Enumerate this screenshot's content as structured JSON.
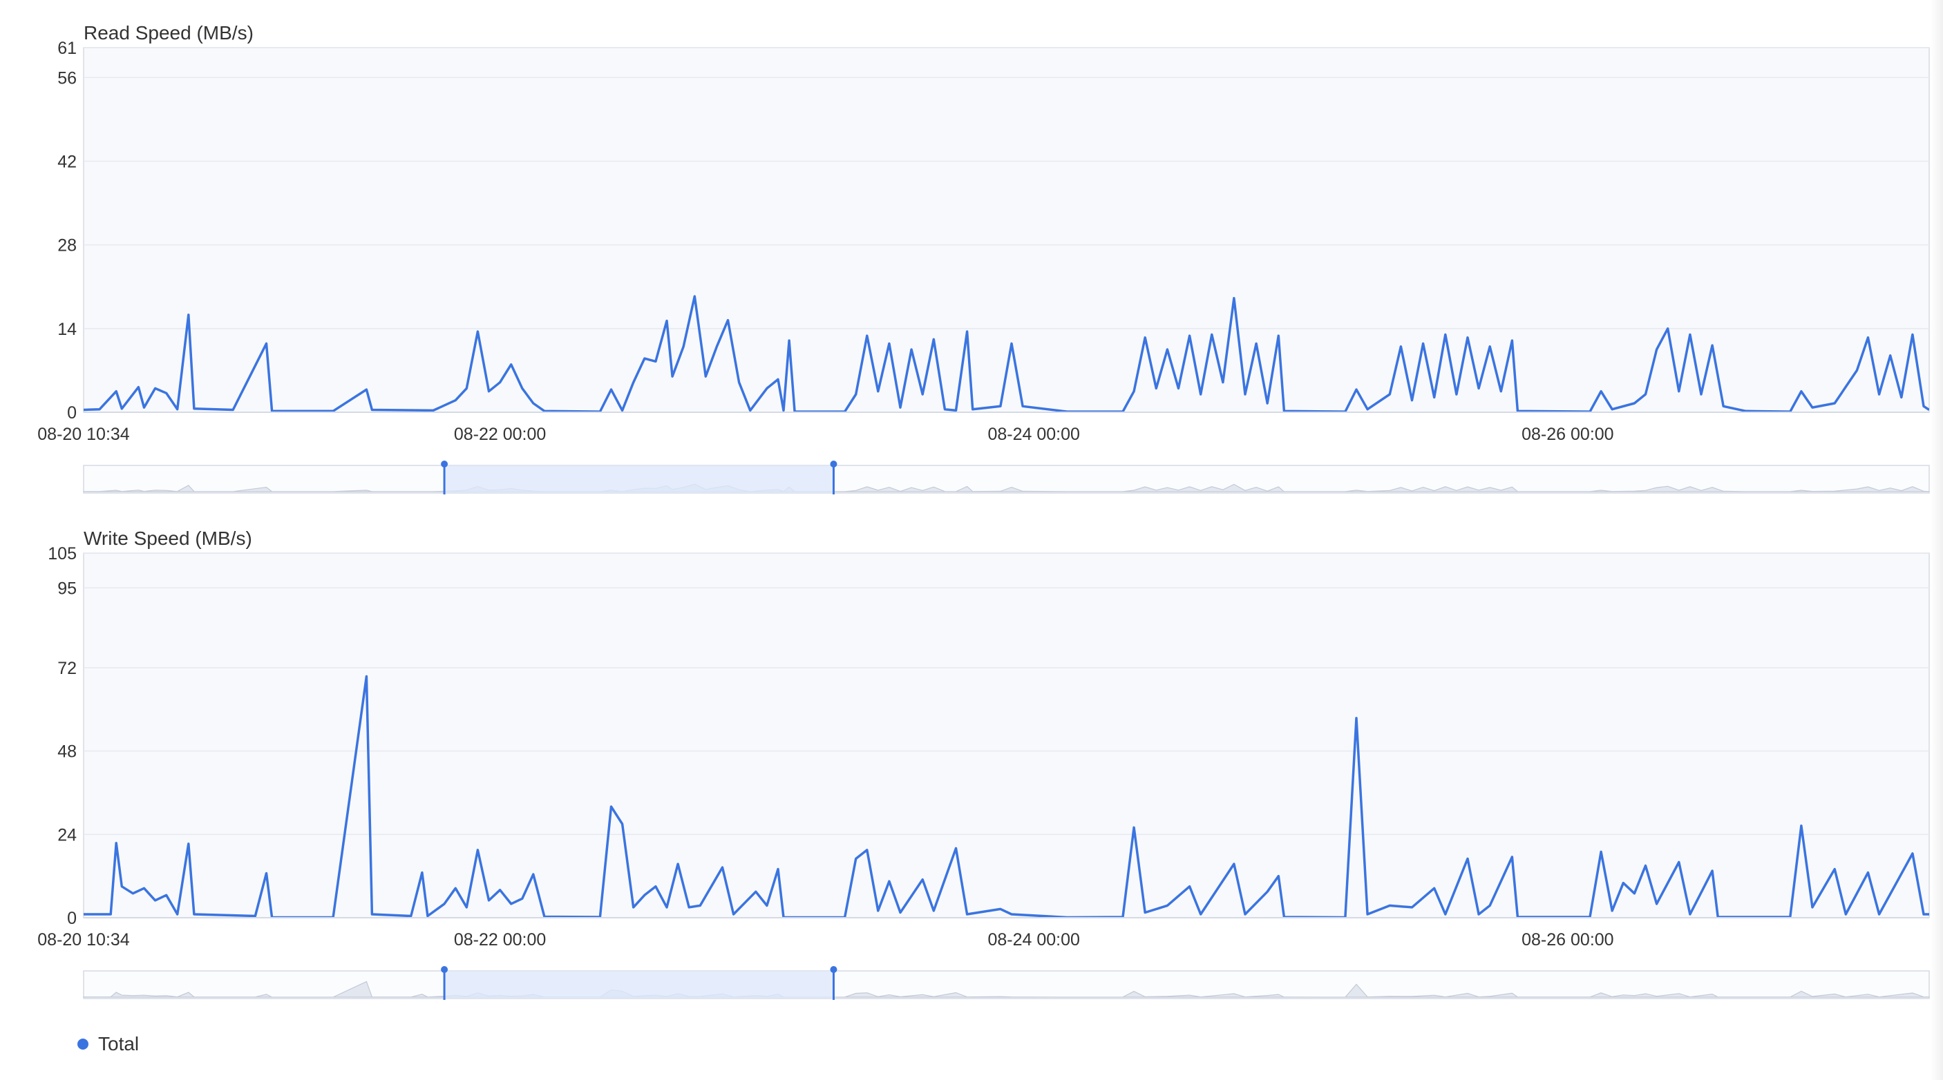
{
  "colors": {
    "series": "#3a74e0",
    "plot_bg": "#f8f9fc",
    "grid": "#e6e9f0",
    "border": "#d5dae4",
    "brush_fill": "#dde8fb",
    "overview": "#c3c9d6"
  },
  "legend": {
    "label": "Total",
    "icon": "dot-icon"
  },
  "chart_data": [
    {
      "type": "line",
      "title": "Read Speed (MB/s)",
      "x_start_label": "08-20 10:34",
      "x_tick_labels": [
        "08-22 00:00",
        "08-24 00:00",
        "08-26 00:00"
      ],
      "x_range": [
        "08-20 10:34",
        "08-27 08:30"
      ],
      "ylim": [
        0,
        61
      ],
      "y_ticks": [
        0,
        14,
        28,
        42,
        56,
        61
      ],
      "grid": true,
      "series": [
        {
          "name": "Total",
          "points": [
            [
              "08-20 10:34",
              0.4
            ],
            [
              "08-20 12:00",
              0.5
            ],
            [
              "08-20 13:30",
              3.5
            ],
            [
              "08-20 14:00",
              0.6
            ],
            [
              "08-20 15:30",
              4.2
            ],
            [
              "08-20 16:00",
              0.8
            ],
            [
              "08-20 17:00",
              4.0
            ],
            [
              "08-20 18:00",
              3.2
            ],
            [
              "08-20 19:00",
              0.5
            ],
            [
              "08-20 20:00",
              16.3
            ],
            [
              "08-20 20:30",
              0.6
            ],
            [
              "08-21 00:00",
              0.4
            ],
            [
              "08-21 03:00",
              11.5
            ],
            [
              "08-21 03:30",
              0.2
            ],
            [
              "08-21 09:00",
              0.2
            ],
            [
              "08-21 12:00",
              3.8
            ],
            [
              "08-21 12:30",
              0.4
            ],
            [
              "08-21 18:00",
              0.3
            ],
            [
              "08-21 20:00",
              2.0
            ],
            [
              "08-21 21:00",
              4.0
            ],
            [
              "08-21 22:00",
              13.5
            ],
            [
              "08-21 23:00",
              3.5
            ],
            [
              "08-22 00:00",
              5.0
            ],
            [
              "08-22 01:00",
              8.0
            ],
            [
              "08-22 02:00",
              4.0
            ],
            [
              "08-22 03:00",
              1.5
            ],
            [
              "08-22 04:00",
              0.2
            ],
            [
              "08-22 09:00",
              0.1
            ],
            [
              "08-22 10:00",
              3.8
            ],
            [
              "08-22 11:00",
              0.3
            ],
            [
              "08-22 12:00",
              5.0
            ],
            [
              "08-22 13:00",
              9.0
            ],
            [
              "08-22 14:00",
              8.5
            ],
            [
              "08-22 15:00",
              15.3
            ],
            [
              "08-22 15:30",
              6.0
            ],
            [
              "08-22 16:30",
              11.0
            ],
            [
              "08-22 17:30",
              19.4
            ],
            [
              "08-22 18:30",
              6.0
            ],
            [
              "08-22 19:30",
              11.0
            ],
            [
              "08-22 20:30",
              15.4
            ],
            [
              "08-22 21:30",
              5.0
            ],
            [
              "08-22 22:30",
              0.3
            ],
            [
              "08-23 00:00",
              4.0
            ],
            [
              "08-23 01:00",
              5.5
            ],
            [
              "08-23 01:30",
              0.3
            ],
            [
              "08-23 02:00",
              12.0
            ],
            [
              "08-23 02:30",
              0.1
            ],
            [
              "08-23 07:00",
              0.1
            ],
            [
              "08-23 08:00",
              3.0
            ],
            [
              "08-23 09:00",
              12.8
            ],
            [
              "08-23 10:00",
              3.5
            ],
            [
              "08-23 11:00",
              11.5
            ],
            [
              "08-23 12:00",
              0.8
            ],
            [
              "08-23 13:00",
              10.5
            ],
            [
              "08-23 14:00",
              3.0
            ],
            [
              "08-23 15:00",
              12.2
            ],
            [
              "08-23 16:00",
              0.5
            ],
            [
              "08-23 17:00",
              0.3
            ],
            [
              "08-23 18:00",
              13.5
            ],
            [
              "08-23 18:30",
              0.5
            ],
            [
              "08-23 21:00",
              1.0
            ],
            [
              "08-23 22:00",
              11.5
            ],
            [
              "08-23 23:00",
              1.0
            ],
            [
              "08-24 03:00",
              0.1
            ],
            [
              "08-24 08:00",
              0.1
            ],
            [
              "08-24 09:00",
              3.5
            ],
            [
              "08-24 10:00",
              12.5
            ],
            [
              "08-24 11:00",
              4.0
            ],
            [
              "08-24 12:00",
              10.5
            ],
            [
              "08-24 13:00",
              4.0
            ],
            [
              "08-24 14:00",
              12.8
            ],
            [
              "08-24 15:00",
              3.0
            ],
            [
              "08-24 16:00",
              13.0
            ],
            [
              "08-24 17:00",
              5.0
            ],
            [
              "08-24 18:00",
              19.1
            ],
            [
              "08-24 19:00",
              3.0
            ],
            [
              "08-24 20:00",
              11.5
            ],
            [
              "08-24 21:00",
              1.5
            ],
            [
              "08-24 22:00",
              12.8
            ],
            [
              "08-24 22:30",
              0.2
            ],
            [
              "08-25 04:00",
              0.1
            ],
            [
              "08-25 05:00",
              3.8
            ],
            [
              "08-25 06:00",
              0.5
            ],
            [
              "08-25 08:00",
              3.0
            ],
            [
              "08-25 09:00",
              11.0
            ],
            [
              "08-25 10:00",
              2.0
            ],
            [
              "08-25 11:00",
              11.5
            ],
            [
              "08-25 12:00",
              2.5
            ],
            [
              "08-25 13:00",
              13.0
            ],
            [
              "08-25 14:00",
              3.0
            ],
            [
              "08-25 15:00",
              12.5
            ],
            [
              "08-25 16:00",
              4.0
            ],
            [
              "08-25 17:00",
              11.0
            ],
            [
              "08-25 18:00",
              3.5
            ],
            [
              "08-25 19:00",
              12.0
            ],
            [
              "08-25 19:30",
              0.2
            ],
            [
              "08-26 02:00",
              0.1
            ],
            [
              "08-26 03:00",
              3.5
            ],
            [
              "08-26 04:00",
              0.5
            ],
            [
              "08-26 06:00",
              1.5
            ],
            [
              "08-26 07:00",
              3.0
            ],
            [
              "08-26 08:00",
              10.5
            ],
            [
              "08-26 09:00",
              14.0
            ],
            [
              "08-26 10:00",
              3.5
            ],
            [
              "08-26 11:00",
              13.0
            ],
            [
              "08-26 12:00",
              3.0
            ],
            [
              "08-26 13:00",
              11.2
            ],
            [
              "08-26 14:00",
              1.0
            ],
            [
              "08-26 16:00",
              0.2
            ],
            [
              "08-26 20:00",
              0.1
            ],
            [
              "08-26 21:00",
              3.5
            ],
            [
              "08-26 22:00",
              0.8
            ],
            [
              "08-27 00:00",
              1.5
            ],
            [
              "08-27 02:00",
              7.0
            ],
            [
              "08-27 03:00",
              12.5
            ],
            [
              "08-27 04:00",
              3.0
            ],
            [
              "08-27 05:00",
              9.5
            ],
            [
              "08-27 06:00",
              2.5
            ],
            [
              "08-27 07:00",
              13.0
            ],
            [
              "08-27 08:00",
              1.0
            ],
            [
              "08-27 08:30",
              0.4
            ]
          ]
        }
      ],
      "brush": {
        "start": "08-21 19:00",
        "end": "08-23 06:00"
      }
    },
    {
      "type": "line",
      "title": "Write Speed (MB/s)",
      "x_start_label": "08-20 10:34",
      "x_tick_labels": [
        "08-22 00:00",
        "08-24 00:00",
        "08-26 00:00"
      ],
      "x_range": [
        "08-20 10:34",
        "08-27 08:30"
      ],
      "ylim": [
        0,
        105
      ],
      "y_ticks": [
        0,
        24,
        48,
        72,
        95,
        105
      ],
      "grid": true,
      "series": [
        {
          "name": "Total",
          "points": [
            [
              "08-20 10:34",
              1.0
            ],
            [
              "08-20 13:00",
              1.0
            ],
            [
              "08-20 13:30",
              21.5
            ],
            [
              "08-20 14:00",
              9.0
            ],
            [
              "08-20 15:00",
              7.0
            ],
            [
              "08-20 16:00",
              8.5
            ],
            [
              "08-20 17:00",
              5.0
            ],
            [
              "08-20 18:00",
              6.5
            ],
            [
              "08-20 19:00",
              1.0
            ],
            [
              "08-20 20:00",
              21.3
            ],
            [
              "08-20 20:30",
              1.0
            ],
            [
              "08-21 02:00",
              0.5
            ],
            [
              "08-21 03:00",
              12.8
            ],
            [
              "08-21 03:30",
              0.1
            ],
            [
              "08-21 09:00",
              0.1
            ],
            [
              "08-21 12:00",
              69.5
            ],
            [
              "08-21 12:30",
              1.0
            ],
            [
              "08-21 16:00",
              0.5
            ],
            [
              "08-21 17:00",
              13.0
            ],
            [
              "08-21 17:30",
              0.5
            ],
            [
              "08-21 19:00",
              4.0
            ],
            [
              "08-21 20:00",
              8.5
            ],
            [
              "08-21 21:00",
              3.0
            ],
            [
              "08-21 22:00",
              19.5
            ],
            [
              "08-21 23:00",
              5.0
            ],
            [
              "08-22 00:00",
              8.0
            ],
            [
              "08-22 01:00",
              4.0
            ],
            [
              "08-22 02:00",
              5.5
            ],
            [
              "08-22 03:00",
              12.5
            ],
            [
              "08-22 04:00",
              0.3
            ],
            [
              "08-22 09:00",
              0.2
            ],
            [
              "08-22 10:00",
              32.0
            ],
            [
              "08-22 11:00",
              27.0
            ],
            [
              "08-22 12:00",
              3.0
            ],
            [
              "08-22 13:00",
              6.5
            ],
            [
              "08-22 14:00",
              9.0
            ],
            [
              "08-22 15:00",
              3.0
            ],
            [
              "08-22 16:00",
              15.5
            ],
            [
              "08-22 17:00",
              3.0
            ],
            [
              "08-22 18:00",
              3.5
            ],
            [
              "08-22 20:00",
              14.5
            ],
            [
              "08-22 21:00",
              1.0
            ],
            [
              "08-22 23:00",
              7.5
            ],
            [
              "08-23 00:00",
              3.5
            ],
            [
              "08-23 01:00",
              14.0
            ],
            [
              "08-23 01:30",
              0.1
            ],
            [
              "08-23 07:00",
              0.1
            ],
            [
              "08-23 08:00",
              17.0
            ],
            [
              "08-23 09:00",
              19.5
            ],
            [
              "08-23 10:00",
              2.0
            ],
            [
              "08-23 11:00",
              10.5
            ],
            [
              "08-23 12:00",
              1.5
            ],
            [
              "08-23 14:00",
              11.0
            ],
            [
              "08-23 15:00",
              2.0
            ],
            [
              "08-23 17:00",
              20.0
            ],
            [
              "08-23 18:00",
              1.0
            ],
            [
              "08-23 21:00",
              2.5
            ],
            [
              "08-23 22:00",
              1.0
            ],
            [
              "08-24 03:00",
              0.1
            ],
            [
              "08-24 08:00",
              0.2
            ],
            [
              "08-24 09:00",
              26.0
            ],
            [
              "08-24 10:00",
              1.5
            ],
            [
              "08-24 12:00",
              3.5
            ],
            [
              "08-24 14:00",
              9.0
            ],
            [
              "08-24 15:00",
              1.0
            ],
            [
              "08-24 18:00",
              15.5
            ],
            [
              "08-24 19:00",
              1.0
            ],
            [
              "08-24 21:00",
              7.5
            ],
            [
              "08-24 22:00",
              12.0
            ],
            [
              "08-24 22:30",
              0.2
            ],
            [
              "08-25 04:00",
              0.1
            ],
            [
              "08-25 05:00",
              57.5
            ],
            [
              "08-25 06:00",
              1.0
            ],
            [
              "08-25 08:00",
              3.5
            ],
            [
              "08-25 10:00",
              3.0
            ],
            [
              "08-25 12:00",
              8.5
            ],
            [
              "08-25 13:00",
              1.0
            ],
            [
              "08-25 15:00",
              17.0
            ],
            [
              "08-25 16:00",
              1.0
            ],
            [
              "08-25 17:00",
              3.5
            ],
            [
              "08-25 19:00",
              17.5
            ],
            [
              "08-25 19:30",
              0.2
            ],
            [
              "08-26 02:00",
              0.2
            ],
            [
              "08-26 03:00",
              19.0
            ],
            [
              "08-26 04:00",
              2.0
            ],
            [
              "08-26 05:00",
              10.0
            ],
            [
              "08-26 06:00",
              7.0
            ],
            [
              "08-26 07:00",
              15.0
            ],
            [
              "08-26 08:00",
              4.0
            ],
            [
              "08-26 10:00",
              16.0
            ],
            [
              "08-26 11:00",
              1.0
            ],
            [
              "08-26 13:00",
              13.5
            ],
            [
              "08-26 13:30",
              0.2
            ],
            [
              "08-26 20:00",
              0.2
            ],
            [
              "08-26 21:00",
              26.5
            ],
            [
              "08-26 22:00",
              3.0
            ],
            [
              "08-27 00:00",
              14.0
            ],
            [
              "08-27 01:00",
              1.0
            ],
            [
              "08-27 03:00",
              13.0
            ],
            [
              "08-27 04:00",
              1.0
            ],
            [
              "08-27 07:00",
              18.5
            ],
            [
              "08-27 08:00",
              1.0
            ],
            [
              "08-27 08:30",
              1.0
            ]
          ]
        }
      ],
      "brush": {
        "start": "08-21 19:00",
        "end": "08-23 06:00"
      }
    }
  ]
}
